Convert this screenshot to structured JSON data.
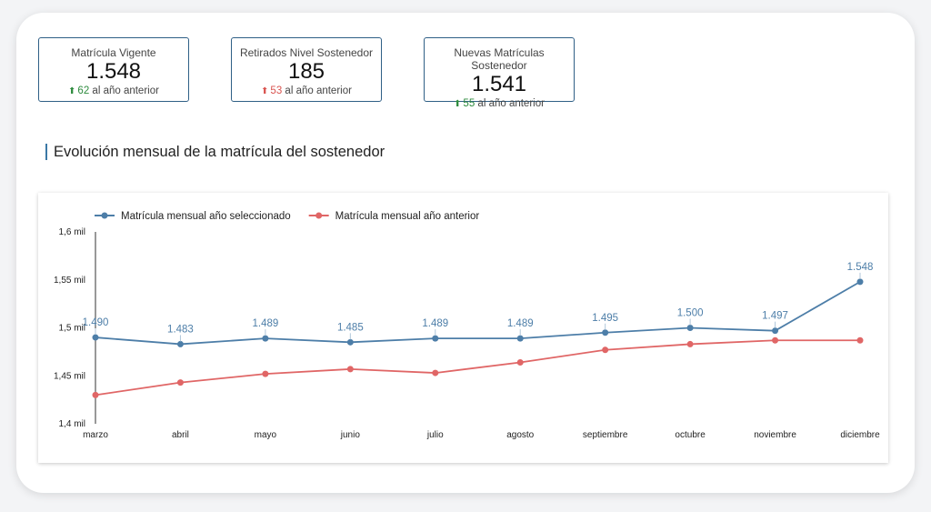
{
  "kpis": [
    {
      "title": "Matrícula Vigente",
      "value": "1.548",
      "delta": "62",
      "delta_text": "al año anterior",
      "direction": "up",
      "color": "#2e8b3e"
    },
    {
      "title": "Retirados Nivel Sostenedor",
      "value": "185",
      "delta": "53",
      "delta_text": "al año anterior",
      "direction": "up",
      "color": "#d9534f"
    },
    {
      "title": "Nuevas Matrículas Sostenedor",
      "value": "1.541",
      "delta": "55",
      "delta_text": "al año anterior",
      "direction": "up",
      "color": "#2e8b3e"
    }
  ],
  "section_title": "Evolución mensual de la matrícula del sostenedor",
  "chart_data": {
    "type": "line",
    "categories": [
      "marzo",
      "abril",
      "mayo",
      "junio",
      "julio",
      "agosto",
      "septiembre",
      "octubre",
      "noviembre",
      "diciembre"
    ],
    "series": [
      {
        "name": "Matrícula mensual año seleccionado",
        "color": "#4d7ea8",
        "values": [
          1490,
          1483,
          1489,
          1485,
          1489,
          1489,
          1495,
          1500,
          1497,
          1548
        ],
        "labels": [
          "1.490",
          "1.483",
          "1.489",
          "1.485",
          "1.489",
          "1.489",
          "1.495",
          "1.500",
          "1.497",
          "1.548"
        ]
      },
      {
        "name": "Matrícula mensual año anterior",
        "color": "#e06666",
        "values": [
          1430,
          1443,
          1452,
          1457,
          1453,
          1464,
          1477,
          1483,
          1487,
          1487
        ]
      }
    ],
    "yticks": [
      1400,
      1450,
      1500,
      1550,
      1600
    ],
    "ytick_labels": [
      "1,4 mil",
      "1,45 mil",
      "1,5 mil",
      "1,55 mil",
      "1,6 mil"
    ],
    "ylim": [
      1400,
      1600
    ],
    "legend": "top-left",
    "grid": false
  }
}
